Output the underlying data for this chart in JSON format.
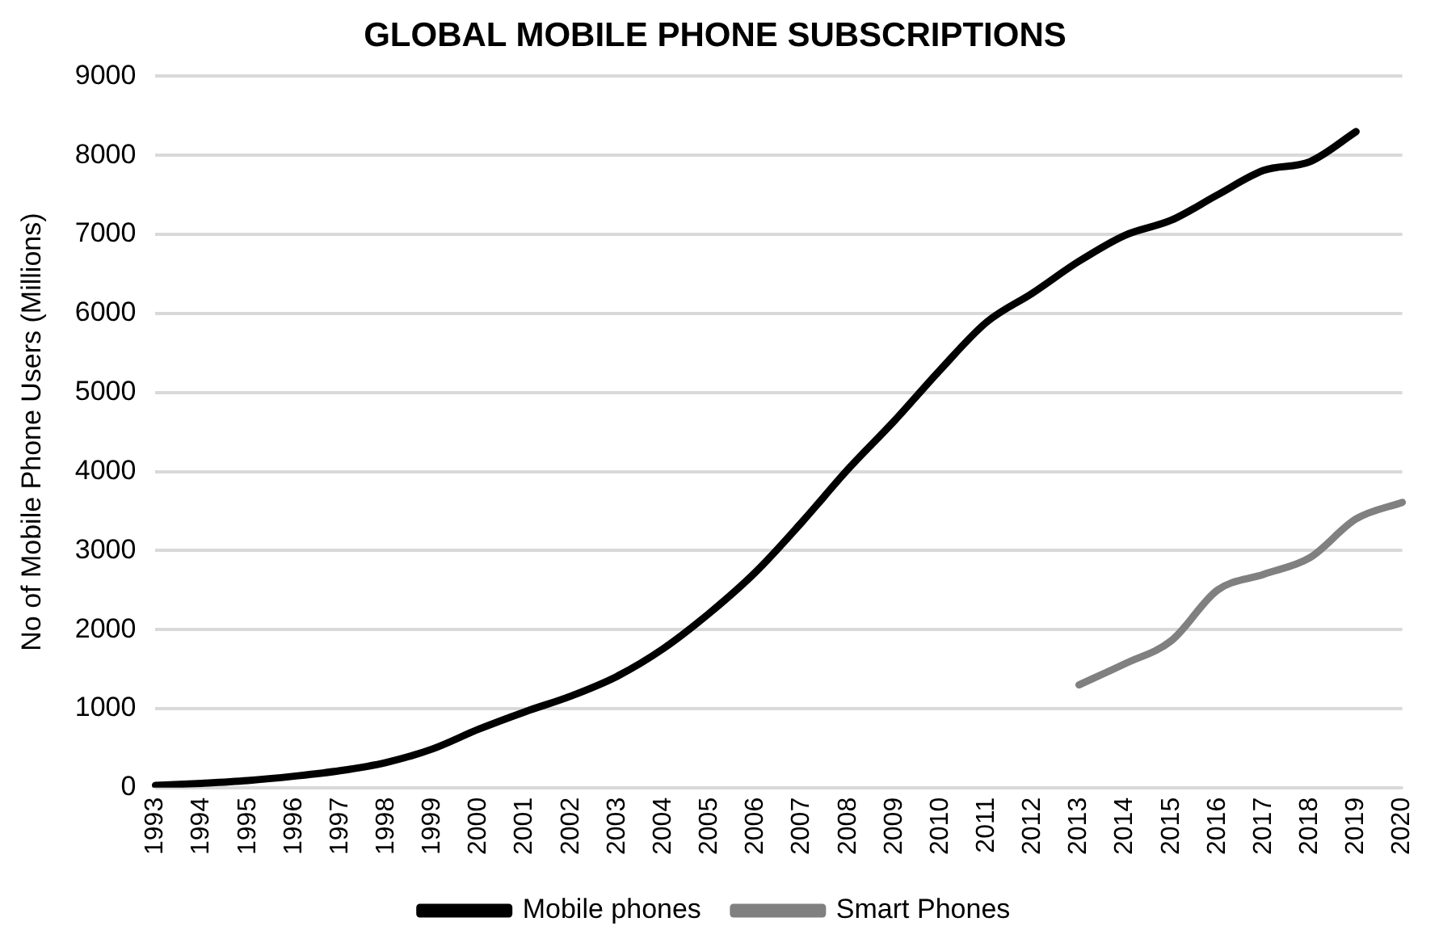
{
  "chart_data": {
    "type": "line",
    "title": "GLOBAL MOBILE PHONE SUBSCRIPTIONS",
    "ylabel": "No of Mobile Phone Users (Millions)",
    "categories": [
      "1993",
      "1994",
      "1995",
      "1996",
      "1997",
      "1998",
      "1999",
      "2000",
      "2001",
      "2002",
      "2003",
      "2004",
      "2005",
      "2006",
      "2007",
      "2008",
      "2009",
      "2010",
      "2011",
      "2012",
      "2013",
      "2014",
      "2015",
      "2016",
      "2017",
      "2018",
      "2019",
      "2020"
    ],
    "series": [
      {
        "name": "Mobile phones",
        "color": "#000000",
        "values": [
          30,
          55,
          90,
          145,
          215,
          320,
          490,
          740,
          960,
          1160,
          1410,
          1760,
          2210,
          2730,
          3360,
          4030,
          4640,
          5290,
          5890,
          6260,
          6660,
          6990,
          7180,
          7500,
          7810,
          7920,
          8300,
          null
        ]
      },
      {
        "name": "Smart Phones",
        "color": "#808080",
        "values": [
          null,
          null,
          null,
          null,
          null,
          null,
          null,
          null,
          null,
          null,
          null,
          null,
          null,
          null,
          null,
          null,
          null,
          null,
          null,
          null,
          1300,
          1570,
          1860,
          2500,
          2700,
          2910,
          3400,
          3610
        ]
      }
    ],
    "ylim": [
      0,
      9000
    ],
    "yticks": [
      0,
      1000,
      2000,
      3000,
      4000,
      5000,
      6000,
      7000,
      8000,
      9000
    ],
    "grid": "y",
    "legend": "bottom",
    "marker": "none",
    "line_style": "solid"
  }
}
